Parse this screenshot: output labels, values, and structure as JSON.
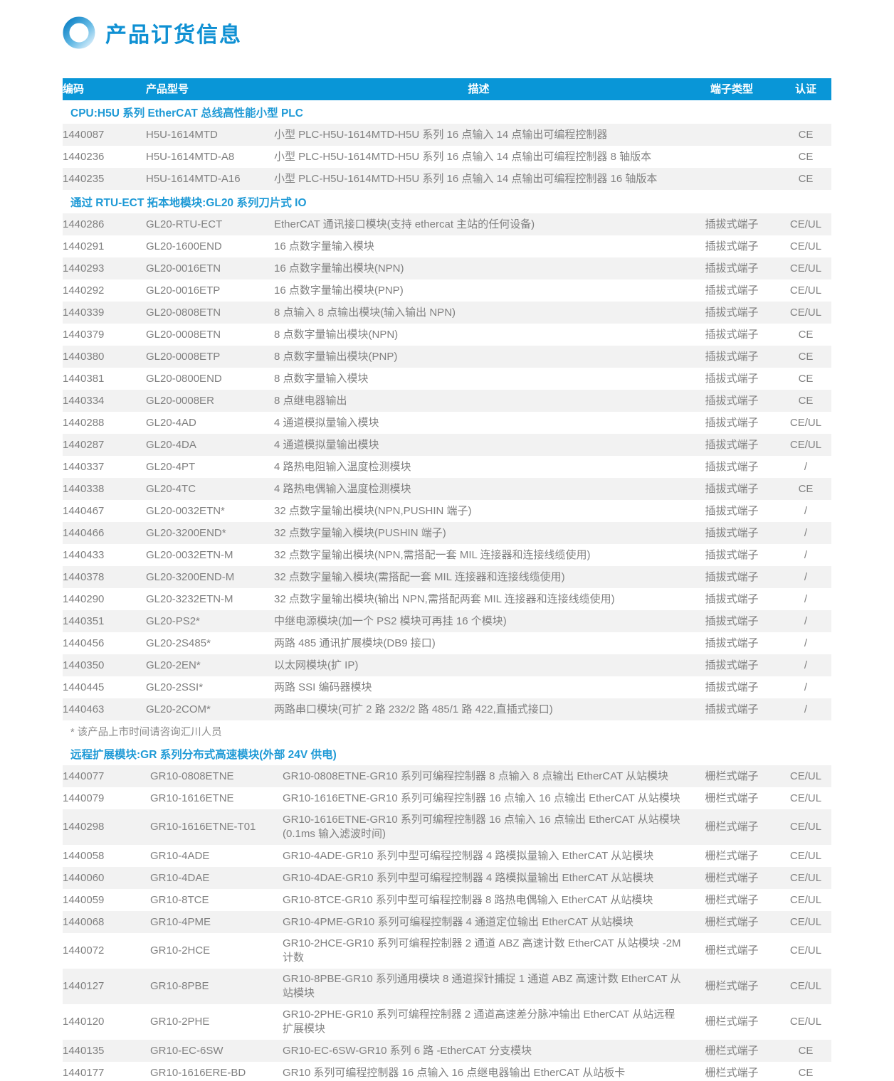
{
  "page": {
    "title": "产品订货信息"
  },
  "colors": {
    "header_bg": "#0996d7",
    "title_blue": "#0e90d3",
    "section_blue": "#1f9ad6",
    "row_stripe": "#f2f2f2",
    "body_text": "#808080"
  },
  "icons": {
    "title_icon": "gradient-ring-icon"
  },
  "table": {
    "headers": [
      "编码",
      "产品型号",
      "描述",
      "端子类型",
      "认证"
    ],
    "sections": [
      {
        "title": "CPU:H5U 系列 EtherCAT 总线高性能小型 PLC",
        "indent": false,
        "rows": [
          {
            "code": "1440087",
            "model": "H5U-1614MTD",
            "desc": "小型 PLC-H5U-1614MTD-H5U 系列 16 点输入 14 点输出可编程控制器",
            "terminal": "",
            "cert": "CE"
          },
          {
            "code": "1440236",
            "model": "H5U-1614MTD-A8",
            "desc": "小型 PLC-H5U-1614MTD-H5U 系列 16 点输入 14 点输出可编程控制器 8 轴版本",
            "terminal": "",
            "cert": "CE"
          },
          {
            "code": "1440235",
            "model": "H5U-1614MTD-A16",
            "desc": "小型 PLC-H5U-1614MTD-H5U 系列 16 点输入 14 点输出可编程控制器 16 轴版本",
            "terminal": "",
            "cert": "CE"
          }
        ]
      },
      {
        "title": "通过 RTU-ECT 拓本地模块:GL20 系列刀片式 IO",
        "indent": false,
        "note": "* 该产品上市时间请咨询汇川人员",
        "rows": [
          {
            "code": "1440286",
            "model": "GL20-RTU-ECT",
            "desc": "EtherCAT 通讯接口模块(支持 ethercat 主站的任何设备)",
            "terminal": "插拔式端子",
            "cert": "CE/UL"
          },
          {
            "code": "1440291",
            "model": "GL20-1600END",
            "desc": "16 点数字量输入模块",
            "terminal": "插拔式端子",
            "cert": "CE/UL"
          },
          {
            "code": "1440293",
            "model": "GL20-0016ETN",
            "desc": "16 点数字量输出模块(NPN)",
            "terminal": "插拔式端子",
            "cert": "CE/UL"
          },
          {
            "code": "1440292",
            "model": "GL20-0016ETP",
            "desc": "16 点数字量输出模块(PNP)",
            "terminal": "插拔式端子",
            "cert": "CE/UL"
          },
          {
            "code": "1440339",
            "model": "GL20-0808ETN",
            "desc": "8 点输入 8 点输出模块(输入输出 NPN)",
            "terminal": "插拔式端子",
            "cert": "CE/UL"
          },
          {
            "code": "1440379",
            "model": "GL20-0008ETN",
            "desc": "8 点数字量输出模块(NPN)",
            "terminal": "插拔式端子",
            "cert": "CE"
          },
          {
            "code": "1440380",
            "model": "GL20-0008ETP",
            "desc": "8 点数字量输出模块(PNP)",
            "terminal": "插拔式端子",
            "cert": "CE"
          },
          {
            "code": "1440381",
            "model": "GL20-0800END",
            "desc": "8 点数字量输入模块",
            "terminal": "插拔式端子",
            "cert": "CE"
          },
          {
            "code": "1440334",
            "model": "GL20-0008ER",
            "desc": "8 点继电器输出",
            "terminal": "插拔式端子",
            "cert": "CE"
          },
          {
            "code": "1440288",
            "model": "GL20-4AD",
            "desc": "4 通道模拟量输入模块",
            "terminal": "插拔式端子",
            "cert": "CE/UL"
          },
          {
            "code": "1440287",
            "model": "GL20-4DA",
            "desc": "4 通道模拟量输出模块",
            "terminal": "插拔式端子",
            "cert": "CE/UL"
          },
          {
            "code": "1440337",
            "model": "GL20-4PT",
            "desc": "4 路热电阻输入温度检测模块",
            "terminal": "插拔式端子",
            "cert": "/"
          },
          {
            "code": "1440338",
            "model": "GL20-4TC",
            "desc": "4 路热电偶输入温度检测模块",
            "terminal": "插拔式端子",
            "cert": "CE"
          },
          {
            "code": "1440467",
            "model": "GL20-0032ETN*",
            "desc": "32 点数字量输出模块(NPN,PUSHIN 端子)",
            "terminal": "插拔式端子",
            "cert": "/"
          },
          {
            "code": "1440466",
            "model": "GL20-3200END*",
            "desc": "32 点数字量输入模块(PUSHIN 端子)",
            "terminal": "插拔式端子",
            "cert": "/"
          },
          {
            "code": "1440433",
            "model": "GL20-0032ETN-M",
            "desc": "32 点数字量输出模块(NPN,需搭配一套 MIL 连接器和连接线缆使用)",
            "terminal": "插拔式端子",
            "cert": "/"
          },
          {
            "code": "1440378",
            "model": "GL20-3200END-M",
            "desc": "32 点数字量输入模块(需搭配一套 MIL 连接器和连接线缆使用)",
            "terminal": "插拔式端子",
            "cert": "/"
          },
          {
            "code": "1440290",
            "model": "GL20-3232ETN-M",
            "desc": "32 点数字量输出模块(输出 NPN,需搭配两套 MIL 连接器和连接线缆使用)",
            "terminal": "插拔式端子",
            "cert": "/"
          },
          {
            "code": "1440351",
            "model": "GL20-PS2*",
            "desc": "中继电源模块(加一个 PS2 模块可再挂 16 个模块)",
            "terminal": "插拔式端子",
            "cert": "/"
          },
          {
            "code": "1440456",
            "model": "GL20-2S485*",
            "desc": "两路 485 通讯扩展模块(DB9 接口)",
            "terminal": "插拔式端子",
            "cert": "/"
          },
          {
            "code": "1440350",
            "model": "GL20-2EN*",
            "desc": "以太网模块(扩 IP)",
            "terminal": "插拔式端子",
            "cert": "/"
          },
          {
            "code": "1440445",
            "model": "GL20-2SSI*",
            "desc": "两路 SSI 编码器模块",
            "terminal": "插拔式端子",
            "cert": "/"
          },
          {
            "code": "1440463",
            "model": "GL20-2COM*",
            "desc": "两路串口模块(可扩 2 路 232/2 路 485/1 路 422,直插式接口)",
            "terminal": "插拔式端子",
            "cert": "/"
          }
        ]
      },
      {
        "title": "远程扩展模块:GR 系列分布式高速模块(外部 24V 供电)",
        "indent": true,
        "rows": [
          {
            "code": "1440077",
            "model": "GR10-0808ETNE",
            "desc": "GR10-0808ETNE-GR10 系列可编程控制器 8 点输入 8 点输出 EtherCAT 从站模块",
            "terminal": "栅栏式端子",
            "cert": "CE/UL"
          },
          {
            "code": "1440079",
            "model": "GR10-1616ETNE",
            "desc": "GR10-1616ETNE-GR10 系列可编程控制器 16 点输入 16 点输出 EtherCAT 从站模块",
            "terminal": "栅栏式端子",
            "cert": "CE/UL"
          },
          {
            "code": "1440298",
            "model": "GR10-1616ETNE-T01",
            "desc": "GR10-1616ETNE-GR10 系列可编程控制器 16 点输入 16 点输出 EtherCAT 从站模块(0.1ms 输入滤波时间)",
            "terminal": "栅栏式端子",
            "cert": "CE/UL"
          },
          {
            "code": "1440058",
            "model": "GR10-4ADE",
            "desc": "GR10-4ADE-GR10 系列中型可编程控制器 4 路模拟量输入 EtherCAT 从站模块",
            "terminal": "栅栏式端子",
            "cert": "CE/UL"
          },
          {
            "code": "1440060",
            "model": "GR10-4DAE",
            "desc": "GR10-4DAE-GR10 系列中型可编程控制器 4 路模拟量输出 EtherCAT 从站模块",
            "terminal": "栅栏式端子",
            "cert": "CE/UL"
          },
          {
            "code": "1440059",
            "model": "GR10-8TCE",
            "desc": "GR10-8TCE-GR10 系列中型可编程控制器 8 路热电偶输入 EtherCAT 从站模块",
            "terminal": "栅栏式端子",
            "cert": "CE/UL"
          },
          {
            "code": "1440068",
            "model": "GR10-4PME",
            "desc": "GR10-4PME-GR10 系列可编程控制器 4 通道定位输出 EtherCAT 从站模块",
            "terminal": "栅栏式端子",
            "cert": "CE/UL"
          },
          {
            "code": "1440072",
            "model": "GR10-2HCE",
            "desc": "GR10-2HCE-GR10 系列可编程控制器 2 通道 ABZ 高速计数 EtherCAT 从站模块 -2M 计数",
            "terminal": "栅栏式端子",
            "cert": "CE/UL"
          },
          {
            "code": "1440127",
            "model": "GR10-8PBE",
            "desc": "GR10-8PBE-GR10 系列通用模块 8 通道探针捕捉 1 通道 ABZ 高速计数 EtherCAT 从站模块",
            "terminal": "栅栏式端子",
            "cert": "CE/UL"
          },
          {
            "code": "1440120",
            "model": "GR10-2PHE",
            "desc": "GR10-2PHE-GR10 系列可编程控制器 2 通道高速差分脉冲输出 EtherCAT 从站远程扩展模块",
            "terminal": "栅栏式端子",
            "cert": "CE/UL"
          },
          {
            "code": "1440135",
            "model": "GR10-EC-6SW",
            "desc": "GR10-EC-6SW-GR10 系列 6 路 -EtherCAT 分支模块",
            "terminal": "栅栏式端子",
            "cert": "CE"
          },
          {
            "code": "1440177",
            "model": "GR10-1616ERE-BD",
            "desc": "GR10 系列可编程控制器 16 点输入 16 点继电器输出 EtherCAT 从站板卡",
            "terminal": "栅栏式端子",
            "cert": "CE"
          }
        ]
      }
    ]
  }
}
